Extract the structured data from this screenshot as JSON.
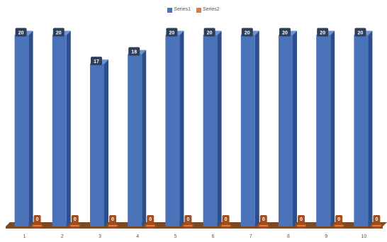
{
  "chart_data": {
    "type": "bar",
    "categories": [
      "1",
      "2",
      "3",
      "4",
      "5",
      "6",
      "7",
      "8",
      "9",
      "10"
    ],
    "series": [
      {
        "name": "Series1",
        "values": [
          20,
          20,
          17,
          18,
          20,
          20,
          20,
          20,
          20,
          20
        ]
      },
      {
        "name": "Series2",
        "values": [
          0,
          0,
          0,
          0,
          0,
          0,
          0,
          0,
          0,
          0
        ]
      }
    ],
    "ylim": [
      0,
      21
    ],
    "grid": false,
    "legend": "top",
    "data_labels": true,
    "colors": {
      "series1": "#4a73b9",
      "series1_side": "#2c4f8c",
      "series1_top": "#6e92d2",
      "series2": "#e07a36",
      "series2_side": "#a0501f",
      "series2_top": "#f09b60",
      "floor": "#7a4a26",
      "label_box": "#2e3f5c"
    }
  }
}
